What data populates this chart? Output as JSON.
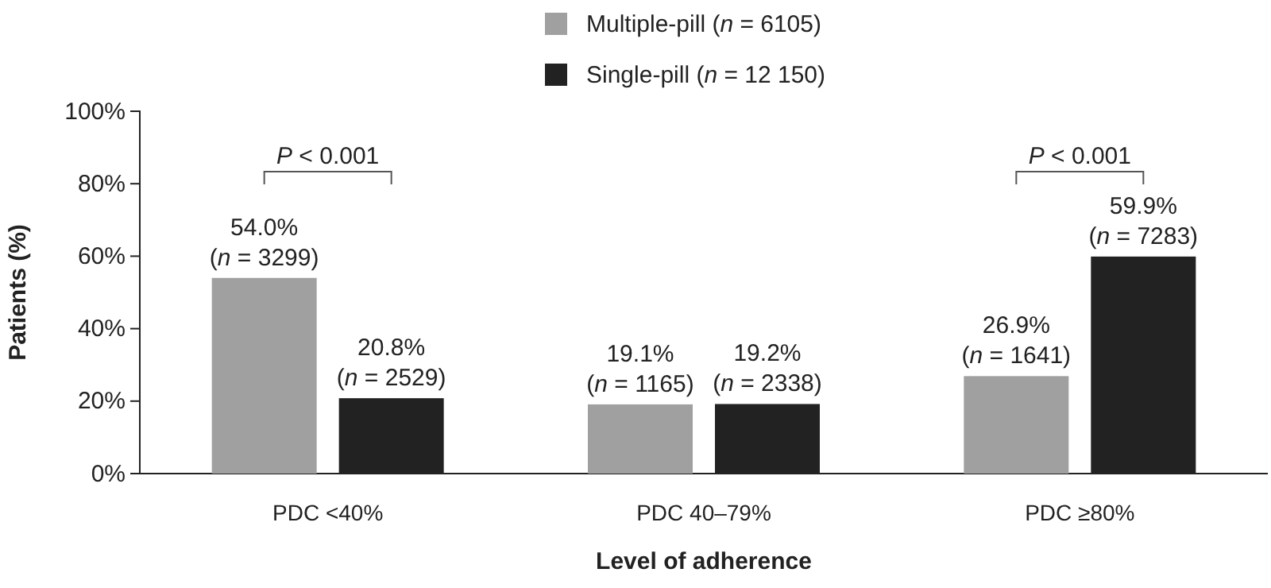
{
  "chart_data": {
    "type": "bar",
    "categories": [
      "PDC <40%",
      "PDC 40–79%",
      "PDC ≥80%"
    ],
    "series": [
      {
        "name": "Multiple-pill (n = 6105)",
        "color": "#a0a0a0",
        "values": [
          54.0,
          19.1,
          26.9
        ],
        "value_labels": [
          "54.0% (n = 3299)",
          "19.1% (n = 1165)",
          "26.9% (n = 1641)"
        ]
      },
      {
        "name": "Single-pill (n = 12 150)",
        "color": "#222222",
        "values": [
          20.8,
          19.2,
          59.9
        ],
        "value_labels": [
          "20.8% (n = 2529)",
          "19.2% (n = 2338)",
          "59.9% (n = 7283)"
        ]
      }
    ],
    "ylim": [
      0,
      100
    ],
    "yticks": [
      {
        "value": 0,
        "label": "0%"
      },
      {
        "value": 20,
        "label": "20%"
      },
      {
        "value": 40,
        "label": "40%"
      },
      {
        "value": 60,
        "label": "60%"
      },
      {
        "value": 80,
        "label": "80%"
      },
      {
        "value": 100,
        "label": "100%"
      }
    ],
    "xlabel": "Level of adherence",
    "ylabel": "Patients (%)",
    "legend": "top",
    "grid": false,
    "annotations": [
      "P < 0.001",
      "P < 0.001"
    ]
  }
}
